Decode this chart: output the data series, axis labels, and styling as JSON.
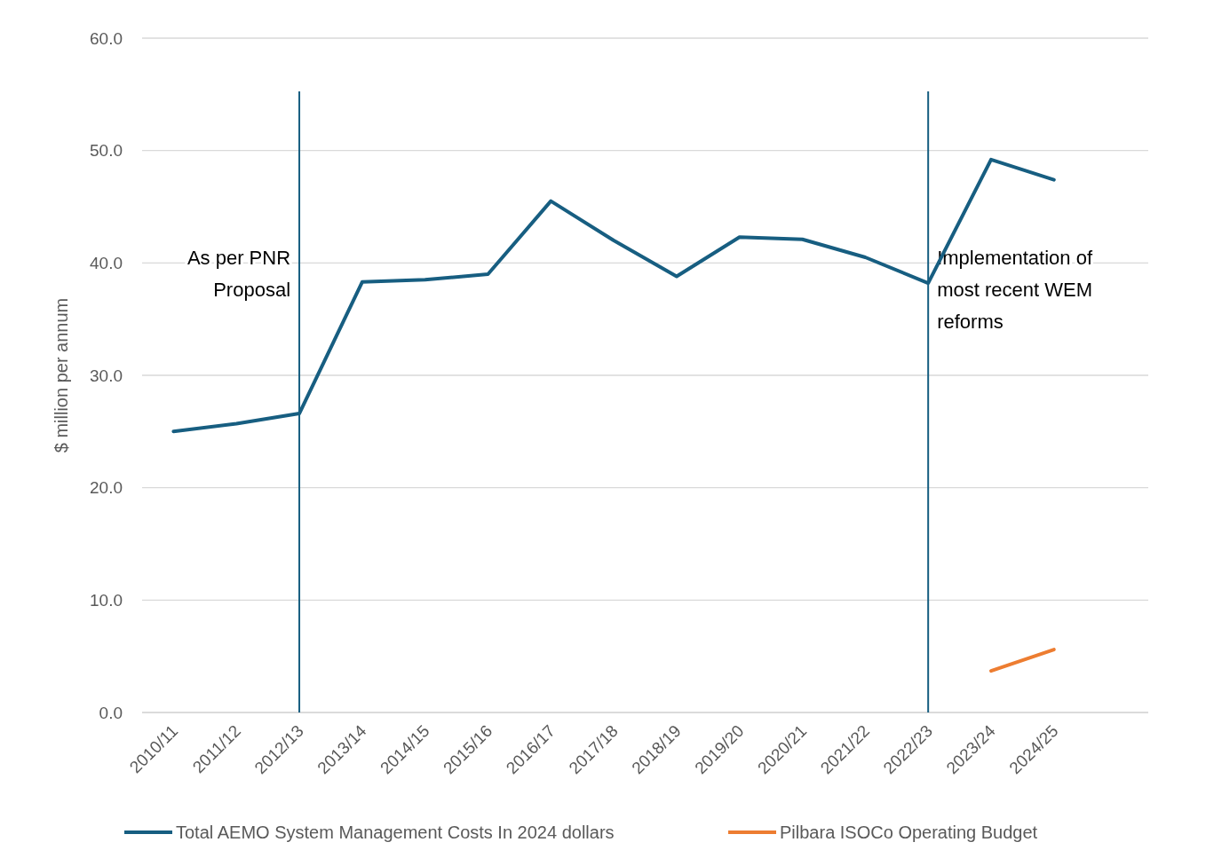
{
  "chart_data": {
    "type": "line",
    "ylabel": "$ million per annum",
    "categories": [
      "2010/11",
      "2011/12",
      "2012/13",
      "2013/14",
      "2014/15",
      "2015/16",
      "2016/17",
      "2017/18",
      "2018/19",
      "2019/20",
      "2020/21",
      "2021/22",
      "2022/23",
      "2023/24",
      "2024/25",
      null
    ],
    "series": [
      {
        "name": "Total AEMO System Management Costs In 2024 dollars",
        "color": "#175e81",
        "values": [
          25.0,
          25.7,
          26.6,
          38.3,
          38.5,
          39.0,
          45.5,
          42.0,
          38.8,
          42.3,
          42.1,
          40.5,
          38.2,
          49.2,
          47.4,
          null
        ]
      },
      {
        "name": "Pilbara ISOCo Operating Budget",
        "color": "#ed7d31",
        "values": [
          null,
          null,
          null,
          null,
          null,
          null,
          null,
          null,
          null,
          null,
          null,
          null,
          null,
          3.7,
          5.6,
          null
        ]
      }
    ],
    "ylim": [
      0,
      60
    ],
    "yticks": [
      {
        "value": 0,
        "label": "0.0"
      },
      {
        "value": 10,
        "label": "10.0"
      },
      {
        "value": 20,
        "label": "20.0"
      },
      {
        "value": 30,
        "label": "30.0"
      },
      {
        "value": 40,
        "label": "40.0"
      },
      {
        "value": 50,
        "label": "50.0"
      },
      {
        "value": 60,
        "label": "60.0"
      }
    ],
    "grid": "y",
    "legend": "bottom",
    "marker": "none",
    "line_style": "solid",
    "ref_lines": [
      {
        "axis": "x",
        "value": "2012/13",
        "label": "As per PNR Proposal",
        "color": "#175e81"
      },
      {
        "axis": "x",
        "value": "2022/23",
        "label": "Implementation of most recent WEM reforms",
        "color": "#175e81"
      }
    ]
  }
}
